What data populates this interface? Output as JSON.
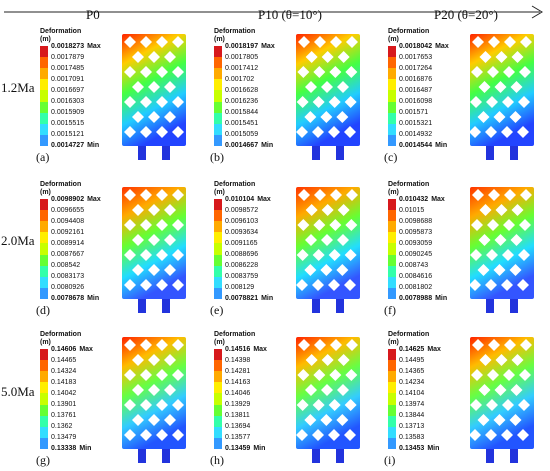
{
  "header": {
    "columns": [
      "P0",
      "P10 (θ=10°)",
      "P20 (θ=20°)"
    ]
  },
  "rows": [
    "1.2Ma",
    "2.0Ma",
    "5.0Ma"
  ],
  "legend": {
    "title": "Deformation",
    "unit": "(m)",
    "max_suffix": "Max",
    "min_suffix": "Min"
  },
  "colorscale": [
    "#d7191c",
    "#ff6600",
    "#ffaa00",
    "#ffee00",
    "#c7ff00",
    "#66ff33",
    "#33ffaa",
    "#33ddff",
    "#3399ff",
    "#2255ff",
    "#1111cc"
  ],
  "panels": [
    {
      "label": "(a)",
      "values": [
        "0.0018273",
        "0.0017879",
        "0.0017485",
        "0.0017091",
        "0.0016697",
        "0.0016303",
        "0.0015909",
        "0.0015515",
        "0.0015121",
        "0.0014727"
      ]
    },
    {
      "label": "(b)",
      "values": [
        "0.0018197",
        "0.0017805",
        "0.0017412",
        "0.001702",
        "0.0016628",
        "0.0016236",
        "0.0015844",
        "0.0015451",
        "0.0015059",
        "0.0014667"
      ]
    },
    {
      "label": "(c)",
      "values": [
        "0.0018042",
        "0.0017653",
        "0.0017264",
        "0.0016876",
        "0.0016487",
        "0.0016098",
        "0.001571",
        "0.0015321",
        "0.0014932",
        "0.0014544"
      ]
    },
    {
      "label": "(d)",
      "values": [
        "0.0098902",
        "0.0096655",
        "0.0094408",
        "0.0092161",
        "0.0089914",
        "0.0087667",
        "0.008542",
        "0.0083173",
        "0.0080926",
        "0.0078678"
      ]
    },
    {
      "label": "(e)",
      "values": [
        "0.010104",
        "0.0098572",
        "0.0096103",
        "0.0093634",
        "0.0091165",
        "0.0088696",
        "0.0086228",
        "0.0083759",
        "0.008129",
        "0.0078821"
      ]
    },
    {
      "label": "(f)",
      "values": [
        "0.010432",
        "0.01015",
        "0.0098688",
        "0.0095873",
        "0.0093059",
        "0.0090245",
        "0.008743",
        "0.0084616",
        "0.0081802",
        "0.0078988"
      ]
    },
    {
      "label": "(g)",
      "values": [
        "0.14606",
        "0.14465",
        "0.14324",
        "0.14183",
        "0.14042",
        "0.13901",
        "0.13761",
        "0.1362",
        "0.13479",
        "0.13338"
      ]
    },
    {
      "label": "(h)",
      "values": [
        "0.14516",
        "0.14398",
        "0.14281",
        "0.14163",
        "0.14046",
        "0.13929",
        "0.13811",
        "0.13694",
        "0.13577",
        "0.13459"
      ]
    },
    {
      "label": "(i)",
      "values": [
        "0.14625",
        "0.14495",
        "0.14365",
        "0.14234",
        "0.14104",
        "0.13974",
        "0.13844",
        "0.13713",
        "0.13583",
        "0.13453"
      ]
    }
  ]
}
